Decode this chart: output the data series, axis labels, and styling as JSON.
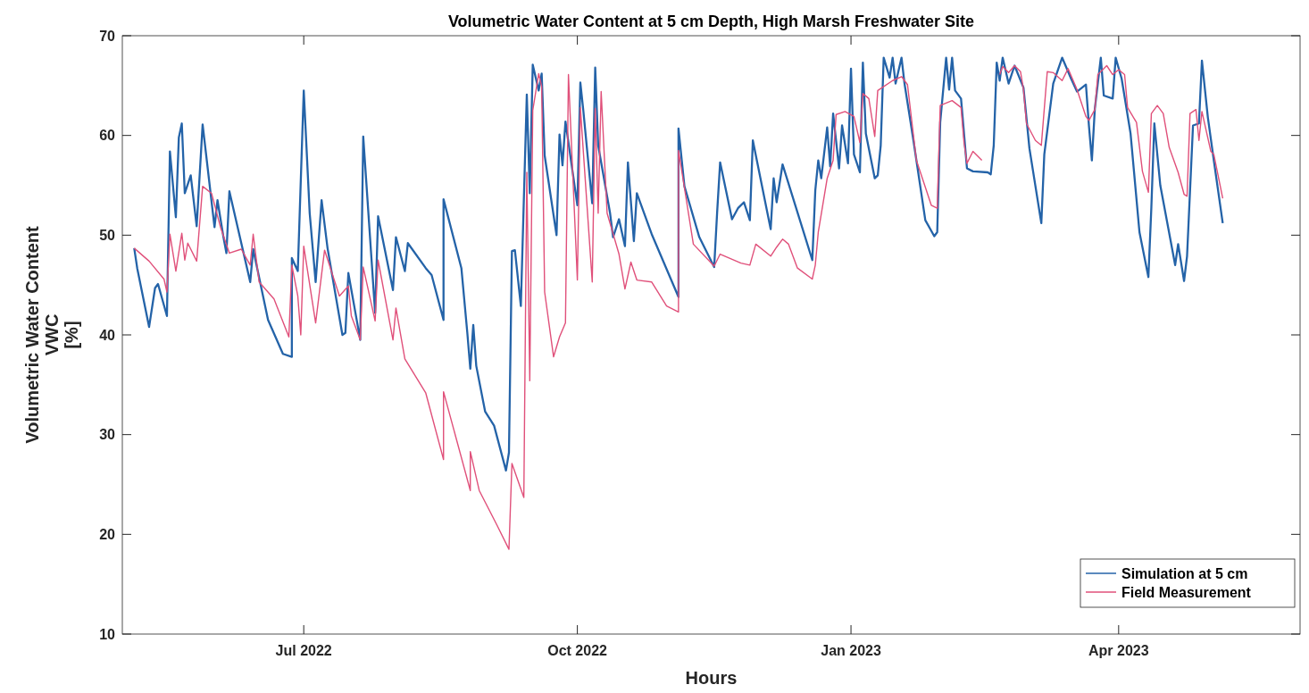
{
  "chart_data": {
    "type": "line",
    "title": "Volumetric Water Content at 5 cm Depth, High Marsh Freshwater Site",
    "xlabel": "Hours",
    "ylabel": "Volumetric Water Content\nVWC\n[%]",
    "xlim": [
      "2022-05-01",
      "2023-06-01"
    ],
    "xticks": [
      {
        "value": "2022-07-01",
        "label": "Jul 2022"
      },
      {
        "value": "2022-10-01",
        "label": "Oct 2022"
      },
      {
        "value": "2023-01-01",
        "label": "Jan 2023"
      },
      {
        "value": "2023-04-01",
        "label": "Apr 2023"
      }
    ],
    "ylim": [
      10,
      70
    ],
    "yticks": [
      10,
      20,
      30,
      40,
      50,
      60,
      70
    ],
    "grid": false,
    "legend": "bottom right",
    "line_style": "solid",
    "marker": "none",
    "series": [
      {
        "name": "Simulation at 5 cm",
        "color": "#2463a8",
        "x": [
          "2022-05-05",
          "2022-05-06",
          "2022-05-10",
          "2022-05-12",
          "2022-05-13",
          "2022-05-16",
          "2022-05-17",
          "2022-05-19",
          "2022-05-20",
          "2022-05-21",
          "2022-05-22",
          "2022-05-24",
          "2022-05-26",
          "2022-05-28",
          "2022-06-01",
          "2022-06-02",
          "2022-06-04",
          "2022-06-05",
          "2022-06-06",
          "2022-06-13",
          "2022-06-14",
          "2022-06-19",
          "2022-06-24",
          "2022-06-27",
          "2022-06-27",
          "2022-06-29",
          "2022-07-01",
          "2022-07-03",
          "2022-07-05",
          "2022-07-07",
          "2022-07-09",
          "2022-07-14",
          "2022-07-15",
          "2022-07-16",
          "2022-07-20",
          "2022-07-21",
          "2022-07-25",
          "2022-07-26",
          "2022-07-31",
          "2022-08-01",
          "2022-08-04",
          "2022-08-05",
          "2022-08-11",
          "2022-08-13",
          "2022-08-17",
          "2022-08-17",
          "2022-08-23",
          "2022-08-25",
          "2022-08-26",
          "2022-08-27",
          "2022-08-28",
          "2022-08-31",
          "2022-09-03",
          "2022-09-07",
          "2022-09-08",
          "2022-09-09",
          "2022-09-10",
          "2022-09-12",
          "2022-09-14",
          "2022-09-15",
          "2022-09-16",
          "2022-09-18",
          "2022-09-19",
          "2022-09-20",
          "2022-09-24",
          "2022-09-25",
          "2022-09-26",
          "2022-09-27",
          "2022-10-01",
          "2022-10-02",
          "2022-10-03",
          "2022-10-06",
          "2022-10-07",
          "2022-10-08",
          "2022-10-12",
          "2022-10-13",
          "2022-10-15",
          "2022-10-17",
          "2022-10-18",
          "2022-10-20",
          "2022-10-21",
          "2022-10-26",
          "2022-11-04",
          "2022-11-04",
          "2022-11-06",
          "2022-11-11",
          "2022-11-16",
          "2022-11-17",
          "2022-11-18",
          "2022-11-22",
          "2022-11-24",
          "2022-11-26",
          "2022-11-28",
          "2022-11-29",
          "2022-12-05",
          "2022-12-06",
          "2022-12-07",
          "2022-12-09",
          "2022-12-19",
          "2022-12-20",
          "2022-12-21",
          "2022-12-22",
          "2022-12-24",
          "2022-12-25",
          "2022-12-26",
          "2022-12-28",
          "2022-12-29",
          "2022-12-31",
          "2023-01-01",
          "2023-01-02",
          "2023-01-04",
          "2023-01-05",
          "2023-01-06",
          "2023-01-09",
          "2023-01-10",
          "2023-01-11",
          "2023-01-12",
          "2023-01-14",
          "2023-01-15",
          "2023-01-16",
          "2023-01-18",
          "2023-01-19",
          "2023-01-22",
          "2023-01-26",
          "2023-01-29",
          "2023-01-30",
          "2023-01-31",
          "2023-02-02",
          "2023-02-03",
          "2023-02-04",
          "2023-02-05",
          "2023-02-07",
          "2023-02-09",
          "2023-02-11",
          "2023-02-16",
          "2023-02-17",
          "2023-02-18",
          "2023-02-19",
          "2023-02-20",
          "2023-02-21",
          "2023-02-23",
          "2023-02-25",
          "2023-02-28",
          "2023-03-02",
          "2023-03-06",
          "2023-03-07",
          "2023-03-10",
          "2023-03-13",
          "2023-03-16",
          "2023-03-18",
          "2023-03-21",
          "2023-03-22",
          "2023-03-23",
          "2023-03-24",
          "2023-03-26",
          "2023-03-27",
          "2023-03-30",
          "2023-03-31",
          "2023-04-02",
          "2023-04-05",
          "2023-04-08",
          "2023-04-11",
          "2023-04-12",
          "2023-04-13",
          "2023-04-15",
          "2023-04-20",
          "2023-04-21",
          "2023-04-23",
          "2023-04-24",
          "2023-04-26",
          "2023-04-28",
          "2023-04-29",
          "2023-05-01",
          "2023-05-03",
          "2023-05-06"
        ],
        "values": [
          48.7,
          46.7,
          40.8,
          44.7,
          45.1,
          41.9,
          58.4,
          51.8,
          59.8,
          61.2,
          54.2,
          56.0,
          50.9,
          61.1,
          50.8,
          53.5,
          49.8,
          48.2,
          54.4,
          45.3,
          48.6,
          41.5,
          38.1,
          37.8,
          47.7,
          46.4,
          64.5,
          52.2,
          45.3,
          53.5,
          48.7,
          40.0,
          40.2,
          46.2,
          39.5,
          59.9,
          42.2,
          51.9,
          44.5,
          49.8,
          46.4,
          49.2,
          46.7,
          46.0,
          41.5,
          53.6,
          46.7,
          40.2,
          36.6,
          41.0,
          36.9,
          32.3,
          30.9,
          26.4,
          28.2,
          48.4,
          48.5,
          42.9,
          64.1,
          54.2,
          67.1,
          64.5,
          66.2,
          58.0,
          50.0,
          60.1,
          57.0,
          61.4,
          53.0,
          65.3,
          62.5,
          53.2,
          66.8,
          59.0,
          52.2,
          49.8,
          51.6,
          48.9,
          57.3,
          49.4,
          54.2,
          50.1,
          43.8,
          60.7,
          54.9,
          49.8,
          46.8,
          52.3,
          57.3,
          51.6,
          52.7,
          53.3,
          51.5,
          59.5,
          50.6,
          55.7,
          53.3,
          57.1,
          47.5,
          54.5,
          57.5,
          55.7,
          60.8,
          56.9,
          62.2,
          56.7,
          61.0,
          57.2,
          66.7,
          58.1,
          56.3,
          67.3,
          60.2,
          55.7,
          56.0,
          59.0,
          67.8,
          65.8,
          67.8,
          65.2,
          67.8,
          65.2,
          59.5,
          51.5,
          49.9,
          50.3,
          61.3,
          67.8,
          64.6,
          67.8,
          64.5,
          63.7,
          56.7,
          56.4,
          56.3,
          56.1,
          59.0,
          67.3,
          65.5,
          67.8,
          65.2,
          67.0,
          64.8,
          58.7,
          51.2,
          58.1,
          65.2,
          67.8,
          65.7,
          64.4,
          65.1,
          61.0,
          57.5,
          62.7,
          67.8,
          64.0,
          63.7,
          67.8,
          65.7,
          60.2,
          50.3,
          45.8,
          52.8,
          61.2,
          55.0,
          47.0,
          49.1,
          45.4,
          47.9,
          61.0,
          61.2,
          67.5,
          61.8,
          57.5,
          51.2
        ]
      },
      {
        "name": "Field Measurement",
        "color": "#e0507a",
        "x": [
          "2022-05-05",
          "2022-05-10",
          "2022-05-15",
          "2022-05-16",
          "2022-05-17",
          "2022-05-19",
          "2022-05-21",
          "2022-05-22",
          "2022-05-23",
          "2022-05-26",
          "2022-05-28",
          "2022-05-31",
          "2022-06-03",
          "2022-06-06",
          "2022-06-10",
          "2022-06-13",
          "2022-06-14",
          "2022-06-16",
          "2022-06-21",
          "2022-06-26",
          "2022-06-27",
          "2022-06-29",
          "2022-06-30",
          "2022-07-01",
          "2022-07-05",
          "2022-07-08",
          "2022-07-13",
          "2022-07-16",
          "2022-07-17",
          "2022-07-20",
          "2022-07-21",
          "2022-07-25",
          "2022-07-26",
          "2022-07-31",
          "2022-08-01",
          "2022-08-04",
          "2022-08-11",
          "2022-08-17",
          "2022-08-17",
          "2022-08-26",
          "2022-08-26",
          "2022-08-29",
          "2022-09-04",
          "2022-09-08",
          "2022-09-09",
          "2022-09-13",
          "2022-09-14",
          "2022-09-15",
          "2022-09-16",
          "2022-09-18",
          "2022-09-19",
          "2022-09-20",
          "2022-09-23",
          "2022-09-25",
          "2022-09-27",
          "2022-09-28",
          "2022-10-01",
          "2022-10-02",
          "2022-10-06",
          "2022-10-07",
          "2022-10-08",
          "2022-10-09",
          "2022-10-11",
          "2022-10-15",
          "2022-10-17",
          "2022-10-19",
          "2022-10-21",
          "2022-10-26",
          "2022-10-31",
          "2022-11-04",
          "2022-11-04",
          "2022-11-09",
          "2022-11-16",
          "2022-11-18",
          "2022-11-25",
          "2022-11-28",
          "2022-11-30",
          "2022-12-05",
          "2022-12-07",
          "2022-12-09",
          "2022-12-11",
          "2022-12-14",
          "2022-12-19",
          "2022-12-20",
          "2022-12-21",
          "2022-12-24",
          "2022-12-26",
          "2022-12-27",
          "2022-12-30",
          "2023-01-02",
          "2023-01-04",
          "2023-01-05",
          "2023-01-07",
          "2023-01-09",
          "2023-01-10",
          "2023-01-15",
          "2023-01-18",
          "2023-01-20",
          "2023-01-23",
          "2023-01-28",
          "2023-01-30",
          "2023-01-31",
          "2023-02-04",
          "2023-02-07",
          "2023-02-08",
          "2023-02-09",
          "2023-02-11",
          "2023-02-14",
          "2023-02-17",
          "2023-02-20",
          "2023-02-21",
          "2023-02-23",
          "2023-02-25",
          "2023-02-27",
          "2023-02-28",
          "2023-03-01",
          "2023-03-04",
          "2023-03-06",
          "2023-03-08",
          "2023-03-10",
          "2023-03-13",
          "2023-03-15",
          "2023-03-18",
          "2023-03-21",
          "2023-03-22",
          "2023-03-24",
          "2023-03-25",
          "2023-03-28",
          "2023-03-30",
          "2023-04-01",
          "2023-04-03",
          "2023-04-04",
          "2023-04-07",
          "2023-04-09",
          "2023-04-11",
          "2023-04-12",
          "2023-04-14",
          "2023-04-16",
          "2023-04-18",
          "2023-04-21",
          "2023-04-23",
          "2023-04-24",
          "2023-04-25",
          "2023-04-27",
          "2023-04-28",
          "2023-04-29",
          "2023-05-02",
          "2023-05-03",
          "2023-05-06"
        ],
        "values": [
          48.7,
          47.4,
          45.6,
          44.3,
          50.1,
          46.4,
          50.2,
          47.5,
          49.2,
          47.4,
          54.9,
          54.2,
          50.8,
          48.2,
          48.6,
          47.0,
          50.1,
          45.3,
          43.6,
          39.8,
          47.0,
          43.9,
          40.0,
          48.9,
          41.2,
          48.5,
          43.9,
          44.9,
          41.9,
          39.5,
          46.8,
          41.4,
          47.5,
          39.5,
          42.7,
          37.6,
          34.2,
          27.5,
          34.3,
          24.4,
          28.3,
          24.4,
          20.9,
          18.5,
          27.1,
          23.7,
          56.3,
          35.4,
          62.5,
          66.2,
          64.9,
          44.3,
          37.8,
          39.8,
          41.2,
          66.1,
          45.5,
          62.8,
          45.3,
          62.7,
          52.2,
          64.4,
          52.2,
          48.1,
          44.6,
          47.3,
          45.5,
          45.3,
          42.9,
          42.3,
          58.5,
          49.1,
          46.9,
          48.1,
          47.2,
          47.0,
          49.1,
          47.9,
          48.8,
          49.6,
          49.1,
          46.7,
          45.6,
          47.0,
          50.3,
          55.7,
          57.5,
          62.1,
          62.4,
          61.9,
          59.3,
          64.2,
          63.7,
          59.9,
          64.5,
          65.5,
          65.9,
          65.1,
          57.5,
          53.0,
          52.7,
          63.0,
          63.5,
          62.8,
          59.3,
          57.2,
          58.4,
          57.5,
          null,
          66.1,
          66.9,
          66.3,
          67.0,
          66.4,
          64.6,
          61.2,
          59.5,
          59.0,
          66.4,
          66.3,
          65.5,
          66.7,
          64.6,
          61.9,
          61.5,
          62.6,
          66.1,
          67.0,
          66.1,
          66.6,
          66.1,
          62.8,
          61.3,
          56.4,
          54.3,
          62.2,
          63.0,
          62.2,
          58.8,
          56.3,
          54.1,
          53.9,
          62.2,
          62.6,
          59.5,
          62.4,
          58.4,
          58.1,
          53.7
        ]
      }
    ]
  }
}
